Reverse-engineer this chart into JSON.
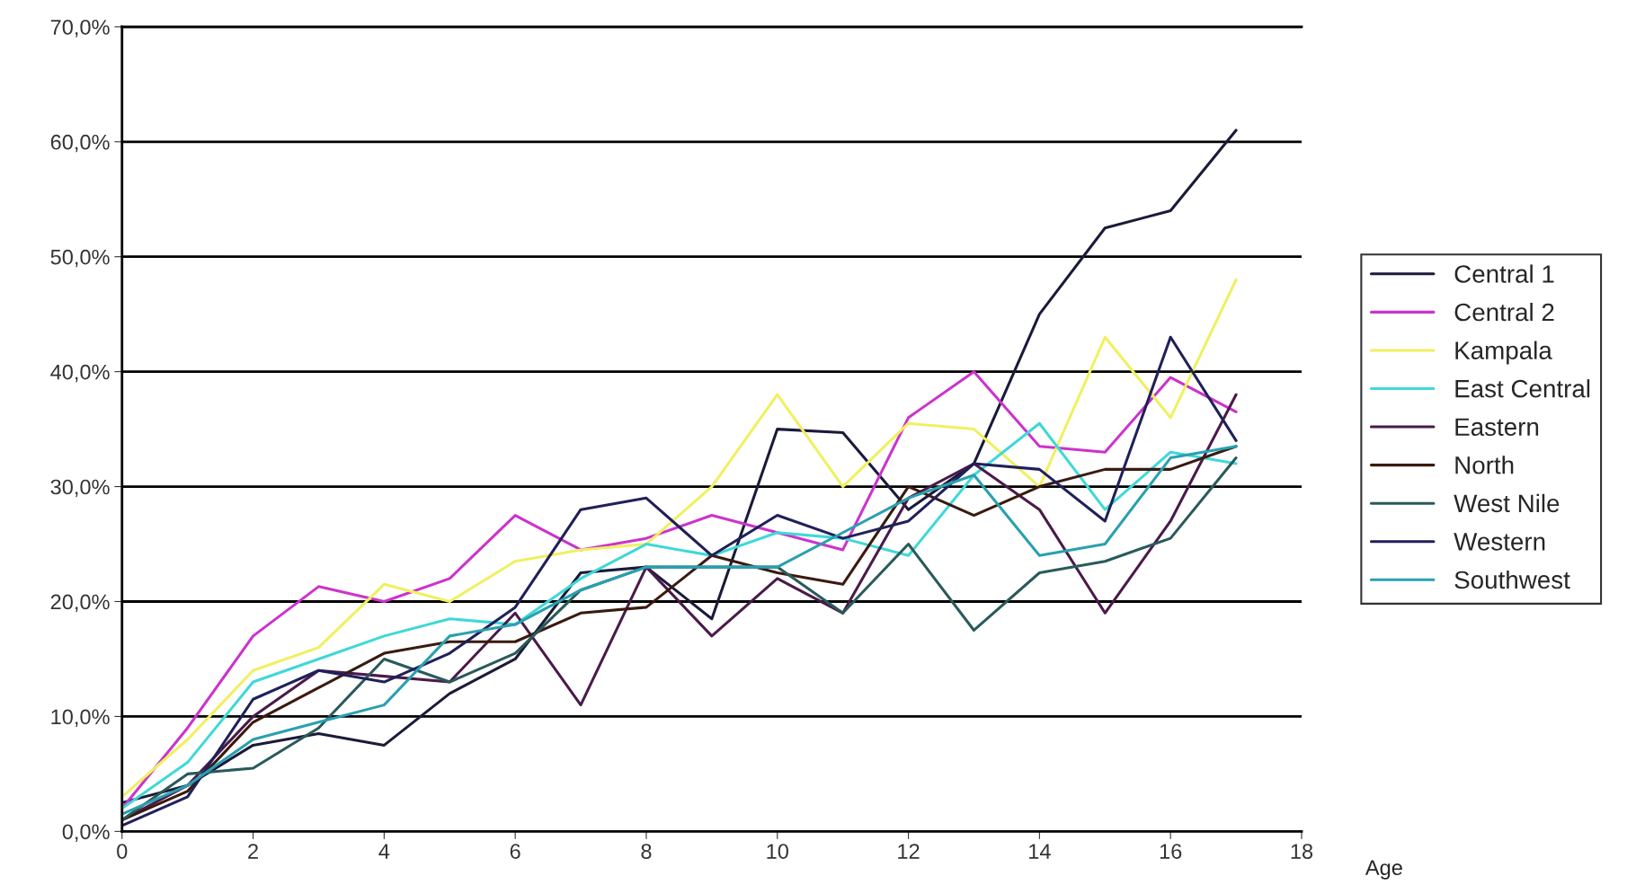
{
  "chart_data": {
    "type": "line",
    "xlabel": "Age",
    "x": [
      0,
      1,
      2,
      3,
      4,
      5,
      6,
      7,
      8,
      9,
      10,
      11,
      12,
      13,
      14,
      15,
      16,
      17
    ],
    "xlim": [
      0,
      18
    ],
    "xticks": [
      0,
      2,
      4,
      6,
      8,
      10,
      12,
      14,
      16,
      18
    ],
    "ylim": [
      0,
      70
    ],
    "yticks": [
      {
        "value": 0,
        "label": "0,0%"
      },
      {
        "value": 10,
        "label": "10,0%"
      },
      {
        "value": 20,
        "label": "20,0%"
      },
      {
        "value": 30,
        "label": "30,0%"
      },
      {
        "value": 40,
        "label": "40,0%"
      },
      {
        "value": 50,
        "label": "50,0%"
      },
      {
        "value": 60,
        "label": "60,0%"
      },
      {
        "value": 70,
        "label": "70,0%"
      }
    ],
    "grid": "y",
    "legend": "right",
    "marker": "none",
    "line_style": "solid",
    "series": [
      {
        "name": "Central 1",
        "color": "#1a1a3a",
        "values": [
          2.5,
          4,
          7.5,
          8.5,
          7.5,
          12,
          15,
          22.5,
          23,
          18.5,
          35,
          34.7,
          28,
          32,
          45,
          52.5,
          54,
          61
        ]
      },
      {
        "name": "Central 2",
        "color": "#cc33cc",
        "values": [
          2,
          9,
          17,
          21.3,
          20,
          22,
          27.5,
          24.5,
          25.5,
          27.5,
          26,
          24.5,
          36,
          40,
          33.5,
          33,
          39.5,
          36.5
        ]
      },
      {
        "name": "Kampala",
        "color": "#f0f060",
        "values": [
          3,
          8,
          14,
          16,
          21.5,
          20,
          23.5,
          24.5,
          25,
          30,
          38,
          30,
          35.5,
          35,
          30,
          43,
          36,
          48
        ]
      },
      {
        "name": "East Central",
        "color": "#40d8d8",
        "values": [
          2,
          6,
          13,
          15,
          17,
          18.5,
          18,
          22,
          25,
          24,
          26,
          25.5,
          24,
          31,
          35.5,
          28,
          33,
          32
        ]
      },
      {
        "name": "Eastern",
        "color": "#4a1a4a",
        "values": [
          1,
          4,
          10,
          14,
          13.5,
          13,
          19,
          11,
          23,
          17,
          22,
          19,
          29,
          32,
          28,
          19,
          27,
          38
        ]
      },
      {
        "name": "North",
        "color": "#3a1a10",
        "values": [
          1,
          3.5,
          9.5,
          12.5,
          15.5,
          16.5,
          16.5,
          19,
          19.5,
          24,
          22.5,
          21.5,
          30,
          27.5,
          30,
          31.5,
          31.5,
          33.5
        ]
      },
      {
        "name": "West Nile",
        "color": "#2a5a5a",
        "values": [
          1,
          5,
          5.5,
          9,
          15,
          13,
          15.5,
          21,
          23,
          23,
          23,
          19,
          25,
          17.5,
          22.5,
          23.5,
          25.5,
          32.5
        ]
      },
      {
        "name": "Western",
        "color": "#20205a",
        "values": [
          0.5,
          3,
          11.5,
          14,
          13,
          15.5,
          19.5,
          28,
          29,
          24,
          27.5,
          25.5,
          27,
          32,
          31.5,
          27,
          43,
          34
        ]
      },
      {
        "name": "Southwest",
        "color": "#2aa0b0",
        "values": [
          1.5,
          4,
          8,
          9.5,
          11,
          17,
          18,
          21,
          23,
          23,
          23,
          26,
          29,
          31,
          24,
          25,
          32.5,
          33.5
        ]
      }
    ]
  }
}
